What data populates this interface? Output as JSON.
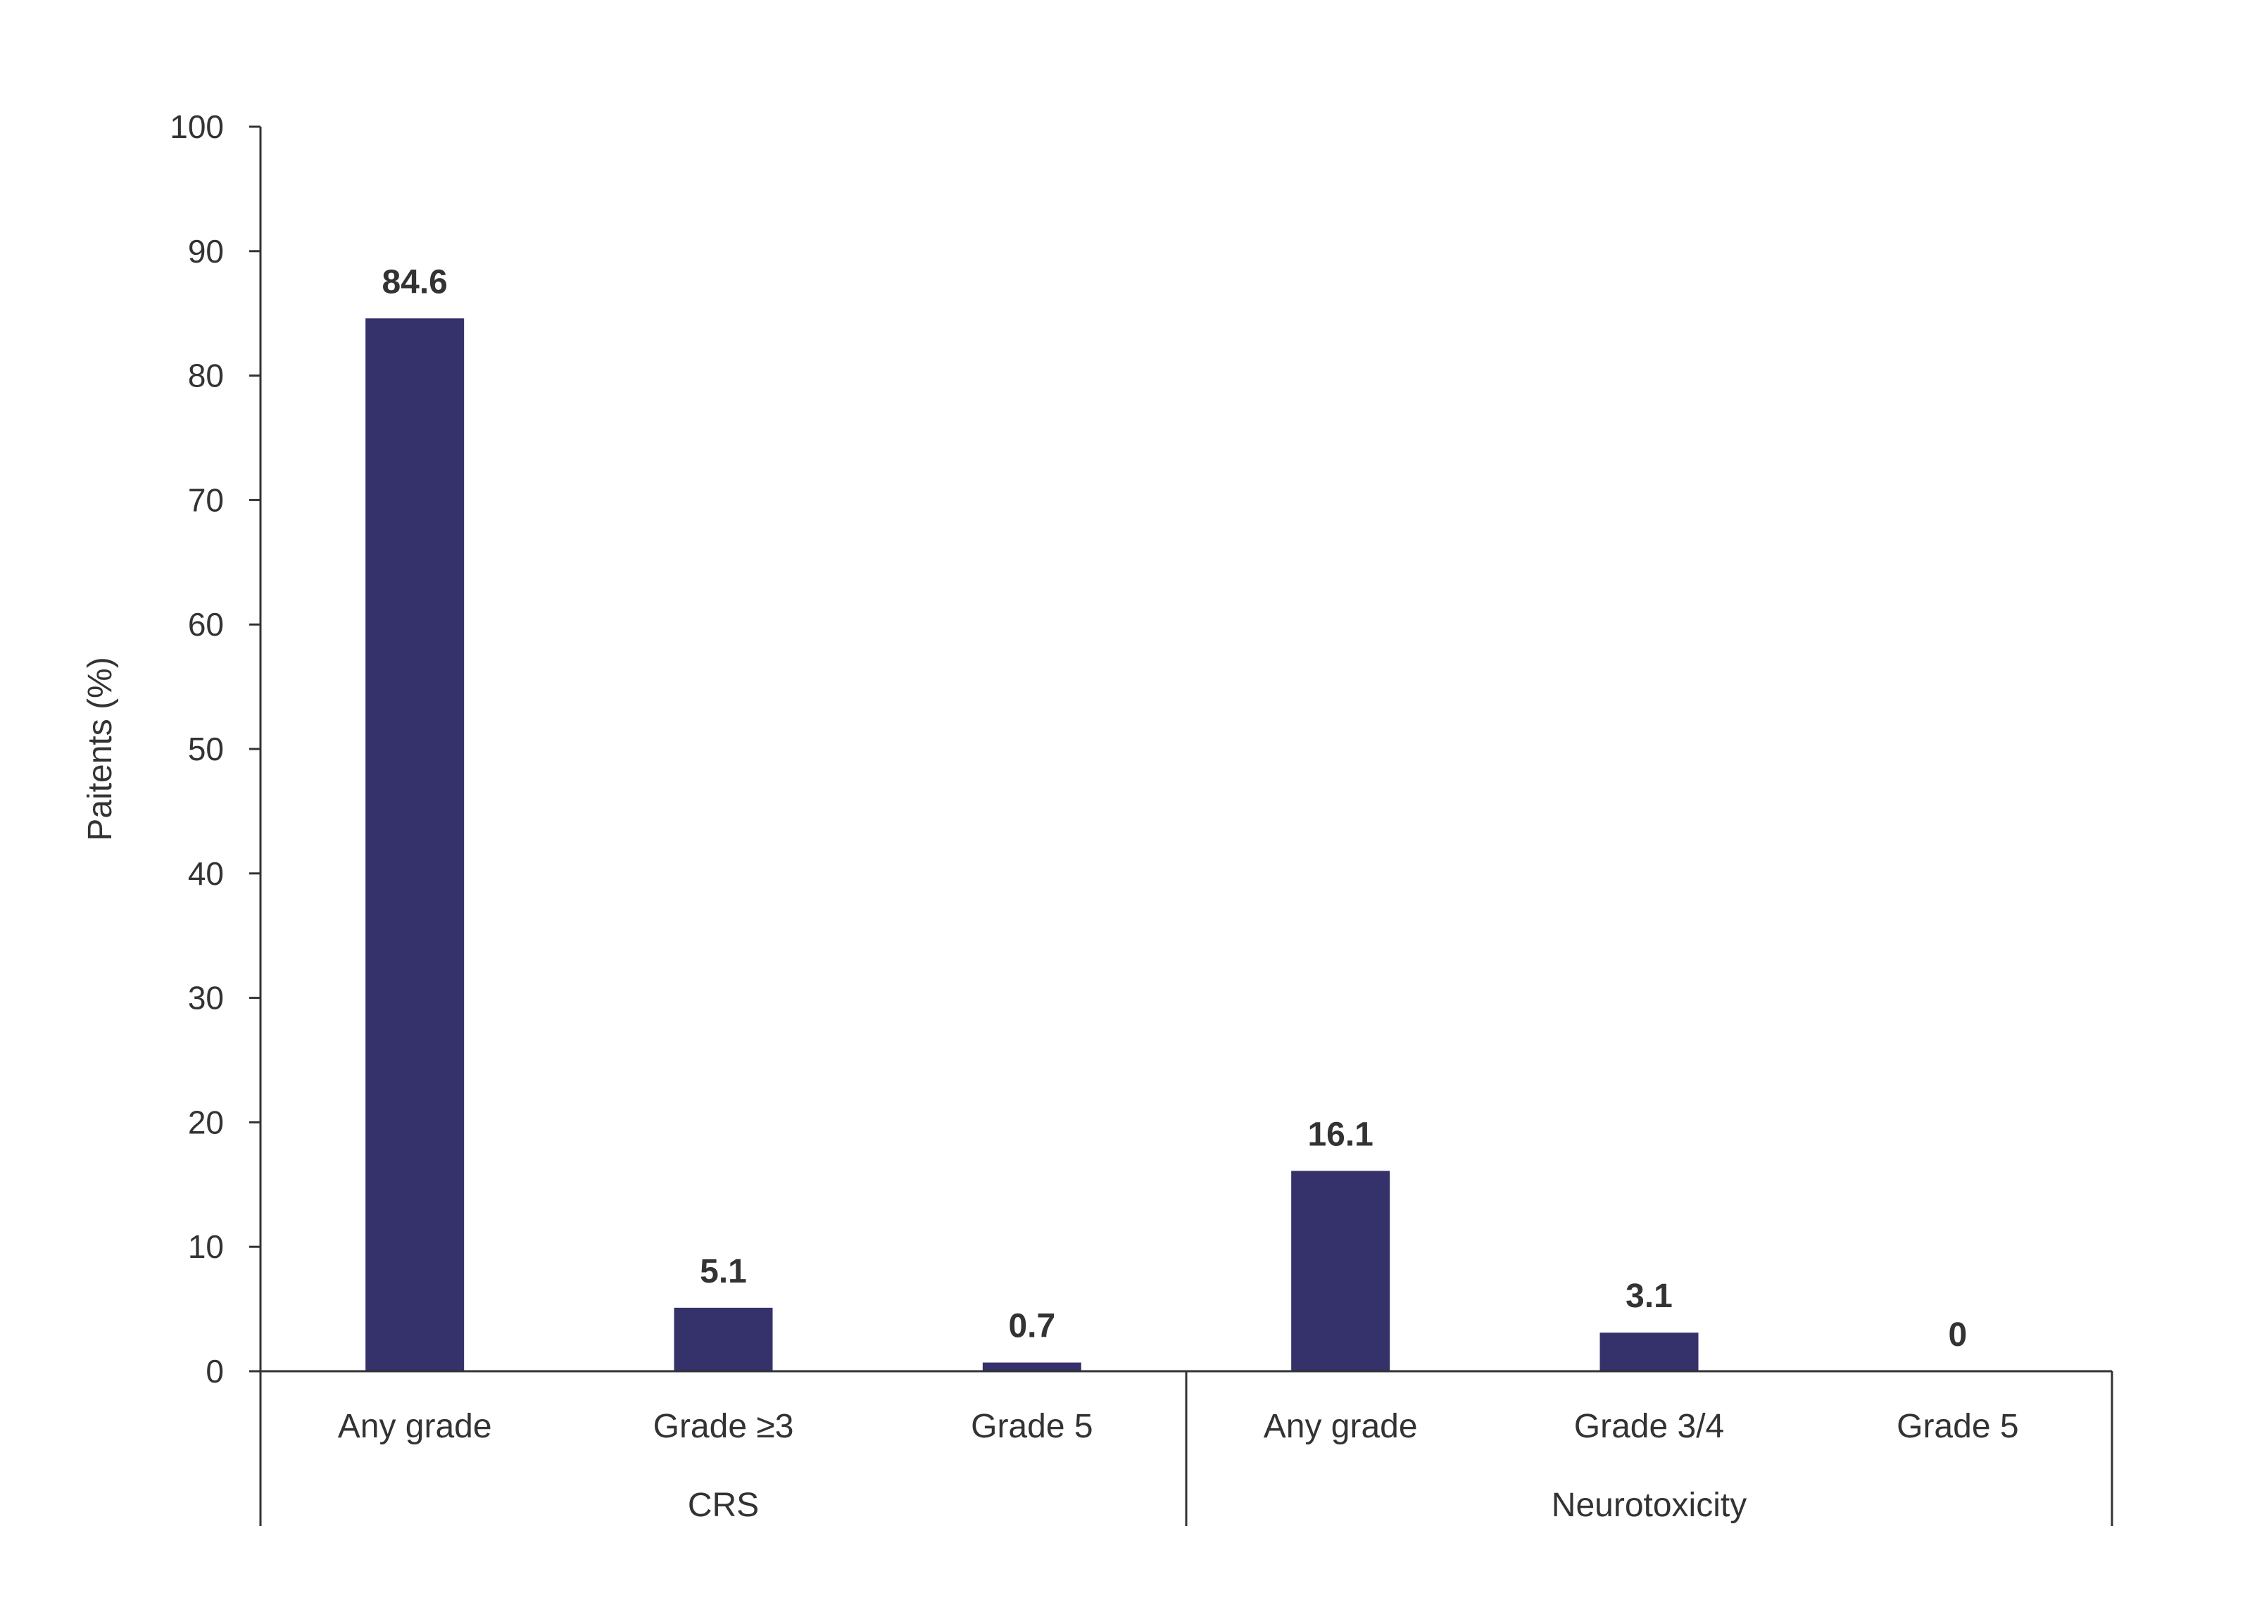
{
  "chart_data": {
    "type": "bar",
    "ylabel": "Paitents (%)",
    "ylim": [
      0,
      100
    ],
    "yticks": [
      0,
      10,
      20,
      30,
      40,
      50,
      60,
      70,
      80,
      90,
      100
    ],
    "groups": [
      {
        "label": "CRS",
        "categories": [
          "Any grade",
          "Grade ≥3",
          "Grade 5"
        ],
        "values": [
          84.6,
          5.1,
          0.7
        ],
        "value_labels": [
          "84.6",
          "5.1",
          "0.7"
        ]
      },
      {
        "label": "Neurotoxicity",
        "categories": [
          "Any grade",
          "Grade 3/4",
          "Grade 5"
        ],
        "values": [
          16.1,
          3.1,
          0
        ],
        "value_labels": [
          "16.1",
          "3.1",
          "0"
        ]
      }
    ],
    "bar_color": "#35316b",
    "grid": false,
    "legend": "none"
  }
}
